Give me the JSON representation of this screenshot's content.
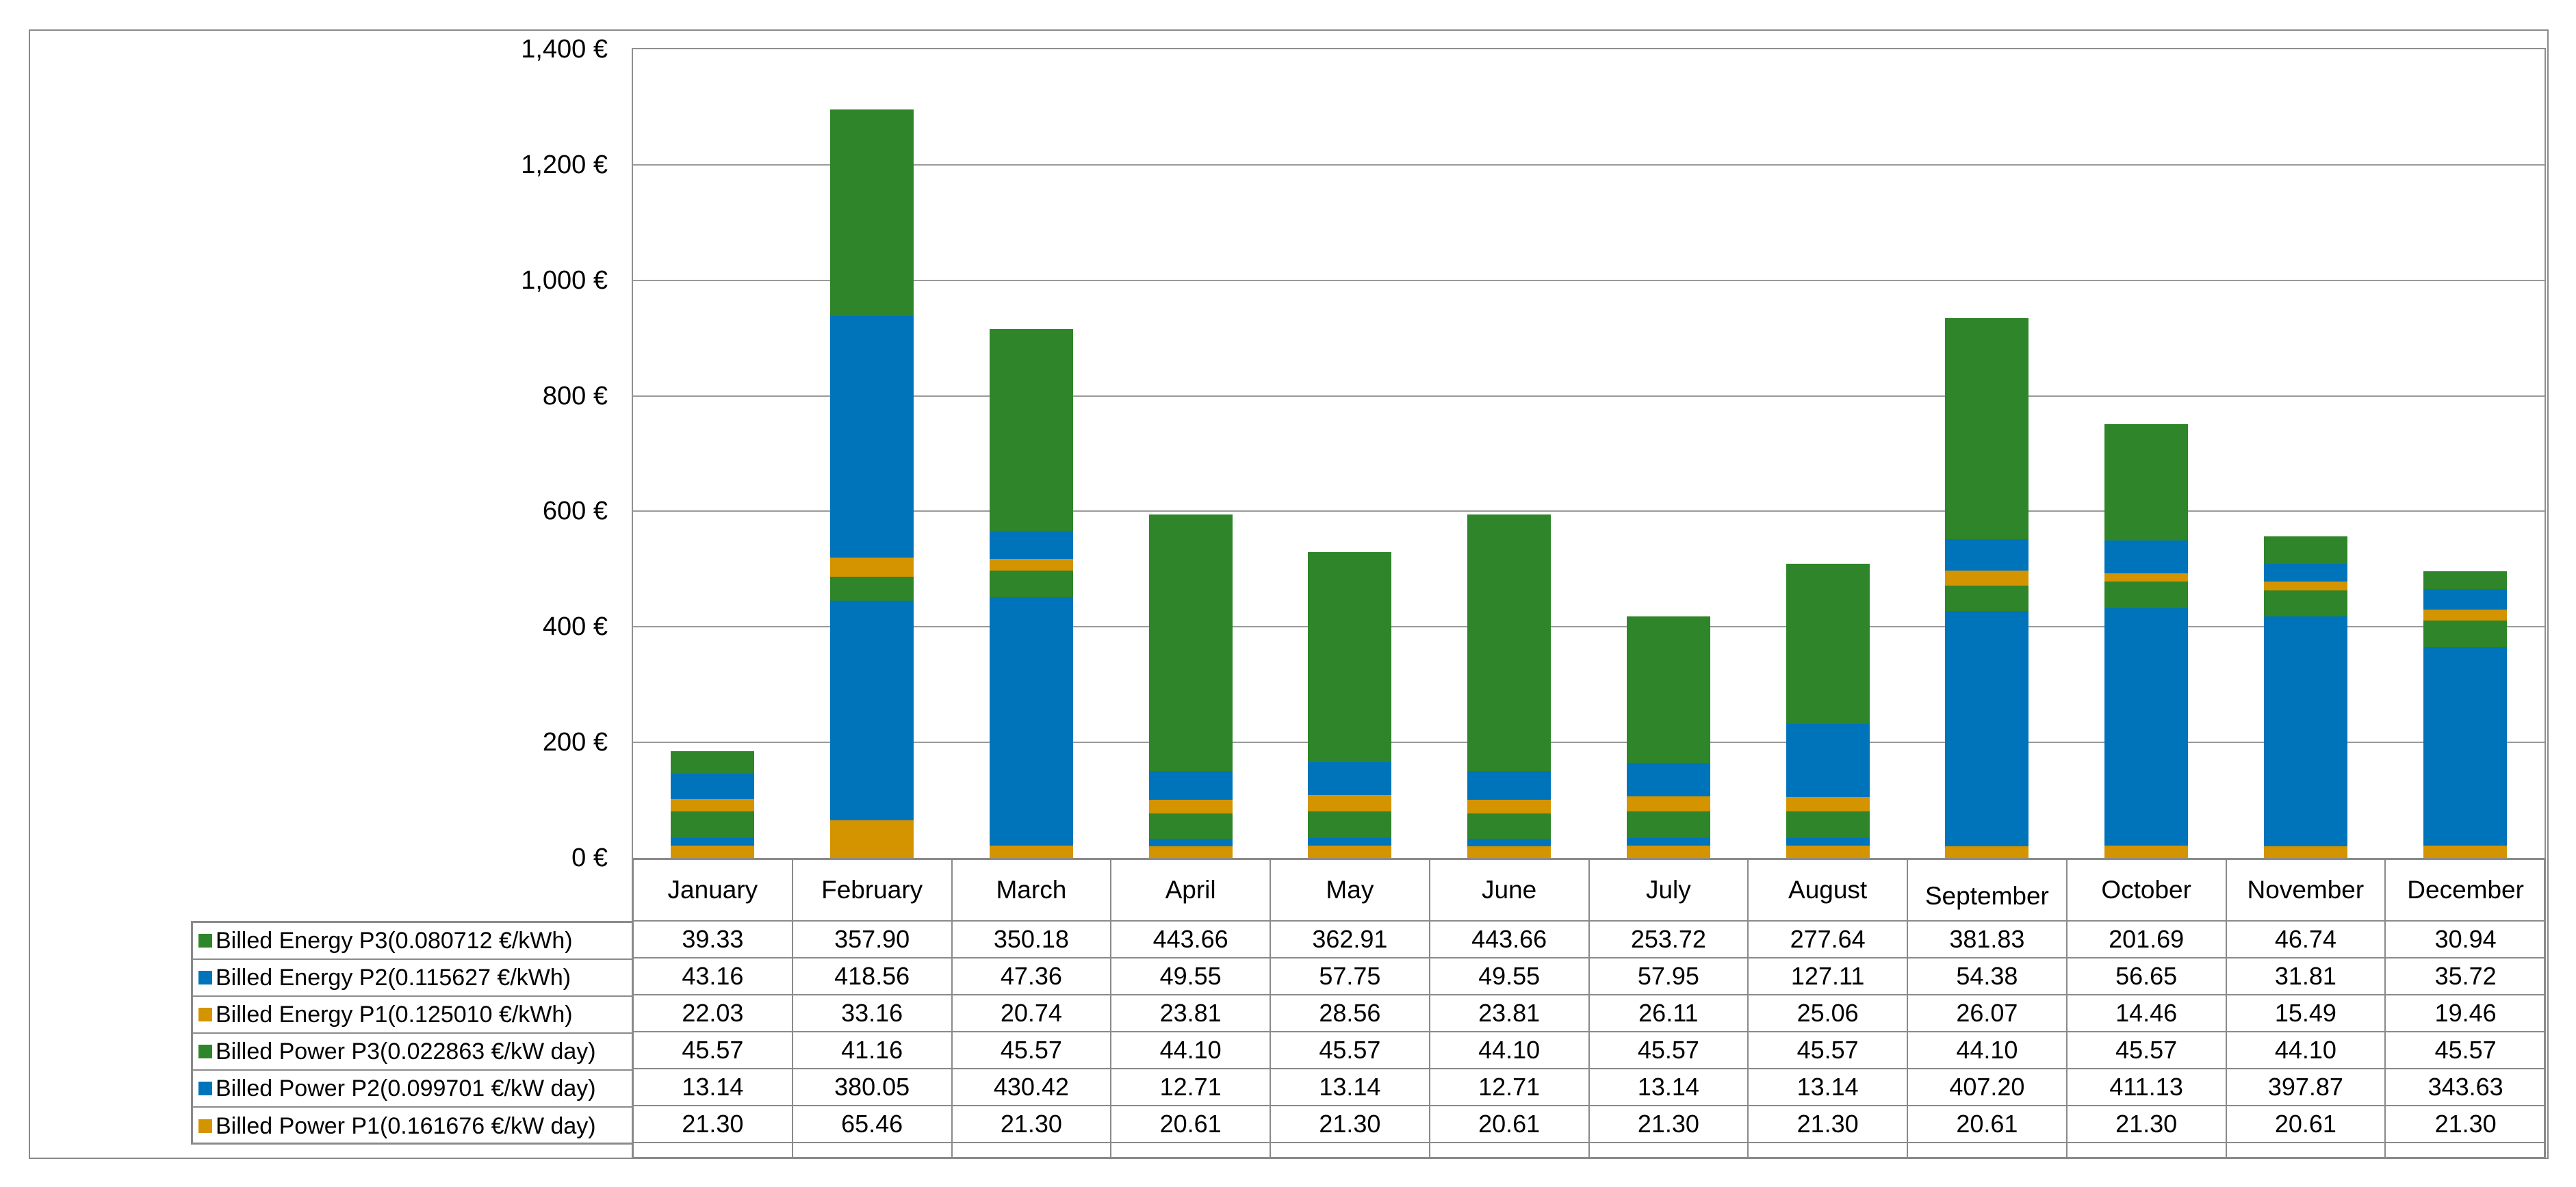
{
  "figure": {
    "background": "#FFFFFF",
    "frame_border_color": "#8A8A8A"
  },
  "colors": {
    "green": "#2F8529",
    "blue": "#0074BA",
    "orange": "#D39400",
    "table_border": "#8A8A8A",
    "gridline": "#9A9A9A",
    "text": "#000000"
  },
  "chart_data": {
    "type": "bar",
    "stacked": true,
    "grid": true,
    "legend_position": "data-table-row-labels",
    "title": "",
    "xlabel": "",
    "ylabel": "",
    "categories": [
      "January",
      "February",
      "March",
      "April",
      "May",
      "June",
      "July",
      "August",
      "September",
      "October",
      "November",
      "December"
    ],
    "y_axis": {
      "min": 0,
      "max": 1400,
      "step": 200,
      "ticks": [
        {
          "value": 1400,
          "label": "1,400 €"
        },
        {
          "value": 1200,
          "label": "1,200 €"
        },
        {
          "value": 1000,
          "label": "1,000 €"
        },
        {
          "value": 800,
          "label": "800 €"
        },
        {
          "value": 600,
          "label": "600 €"
        },
        {
          "value": 400,
          "label": "400 €"
        },
        {
          "value": 200,
          "label": "200 €"
        },
        {
          "value": 0,
          "label": "0 €"
        }
      ]
    },
    "series": [
      {
        "name": "Billed Energy P3(0.080712 €/kWh)",
        "color": "#2F8529",
        "values": [
          "39.33",
          "357.90",
          "350.18",
          "443.66",
          "362.91",
          "443.66",
          "253.72",
          "277.64",
          "381.83",
          "201.69",
          "46.74",
          "30.94"
        ]
      },
      {
        "name": "Billed Energy P2(0.115627 €/kWh)",
        "color": "#0074BA",
        "values": [
          "43.16",
          "418.56",
          "47.36",
          "49.55",
          "57.75",
          "49.55",
          "57.95",
          "127.11",
          "54.38",
          "56.65",
          "31.81",
          "35.72"
        ]
      },
      {
        "name": "Billed Energy P1(0.125010 €/kWh)",
        "color": "#D39400",
        "values": [
          "22.03",
          "33.16",
          "20.74",
          "23.81",
          "28.56",
          "23.81",
          "26.11",
          "25.06",
          "26.07",
          "14.46",
          "15.49",
          "19.46"
        ]
      },
      {
        "name": "Billed Power P3(0.022863 €/kW day)",
        "color": "#2F8529",
        "values": [
          "45.57",
          "41.16",
          "45.57",
          "44.10",
          "45.57",
          "44.10",
          "45.57",
          "45.57",
          "44.10",
          "45.57",
          "44.10",
          "45.57"
        ]
      },
      {
        "name": "Billed Power P2(0.099701 €/kW day)",
        "color": "#0074BA",
        "values": [
          "13.14",
          "380.05",
          "430.42",
          "12.71",
          "13.14",
          "12.71",
          "13.14",
          "13.14",
          "407.20",
          "411.13",
          "397.87",
          "343.63"
        ]
      },
      {
        "name": "Billed Power P1(0.161676 €/kW day)",
        "color": "#D39400",
        "values": [
          "21.30",
          "65.46",
          "21.30",
          "20.61",
          "21.30",
          "20.61",
          "21.30",
          "21.30",
          "20.61",
          "21.30",
          "20.61",
          "21.30"
        ]
      }
    ],
    "stack_order_bottom_to_top": [
      5,
      4,
      3,
      2,
      1,
      0
    ]
  }
}
